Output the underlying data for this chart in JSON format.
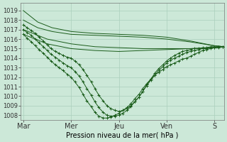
{
  "background_color": "#cce8d8",
  "grid_color": "#aacfbc",
  "line_color": "#1a5c1a",
  "xlabel": "Pression niveau de la mer( hPa )",
  "ylim": [
    1007.5,
    1019.8
  ],
  "xlim": [
    -0.05,
    4.2
  ],
  "yticks": [
    1008,
    1009,
    1010,
    1011,
    1012,
    1013,
    1014,
    1015,
    1016,
    1017,
    1018,
    1019
  ],
  "xtick_labels": [
    "Mar",
    "Mer",
    "Jeu",
    "Ven",
    "S"
  ],
  "xtick_positions": [
    0,
    1,
    2,
    3,
    4
  ],
  "smooth_lines": [
    {
      "x": [
        0,
        0.3,
        0.6,
        1.0,
        1.5,
        2.0,
        2.5,
        3.0,
        3.5,
        4.0,
        4.2
      ],
      "y": [
        1019.0,
        1017.8,
        1017.2,
        1016.8,
        1016.6,
        1016.5,
        1016.4,
        1016.2,
        1015.8,
        1015.3,
        1015.2
      ]
    },
    {
      "x": [
        0,
        0.3,
        0.6,
        1.0,
        1.5,
        2.0,
        2.5,
        3.0,
        3.5,
        4.0,
        4.2
      ],
      "y": [
        1018.0,
        1017.2,
        1016.8,
        1016.5,
        1016.4,
        1016.3,
        1016.2,
        1016.0,
        1015.7,
        1015.3,
        1015.2
      ]
    },
    {
      "x": [
        0,
        0.5,
        1.0,
        1.5,
        2.0,
        2.5,
        3.0,
        3.5,
        4.0,
        4.2
      ],
      "y": [
        1017.0,
        1016.0,
        1015.5,
        1015.2,
        1015.1,
        1015.0,
        1015.0,
        1015.0,
        1015.1,
        1015.2
      ]
    },
    {
      "x": [
        0,
        0.5,
        1.0,
        1.5,
        2.0,
        2.5,
        3.0,
        3.5,
        4.0,
        4.2
      ],
      "y": [
        1016.5,
        1015.5,
        1015.0,
        1014.8,
        1014.7,
        1014.8,
        1014.9,
        1015.0,
        1015.1,
        1015.2
      ]
    }
  ],
  "marked_lines": [
    {
      "x": [
        0,
        0.08,
        0.17,
        0.25,
        0.33,
        0.42,
        0.5,
        0.58,
        0.67,
        0.75,
        0.83,
        0.92,
        1.0,
        1.08,
        1.17,
        1.25,
        1.33,
        1.42,
        1.5,
        1.58,
        1.67,
        1.75,
        1.83,
        1.92,
        2.0,
        2.08,
        2.17,
        2.25,
        2.33,
        2.42,
        2.5,
        2.58,
        2.67,
        2.75,
        2.83,
        2.92,
        3.0,
        3.08,
        3.17,
        3.25,
        3.33,
        3.42,
        3.5,
        3.58,
        3.67,
        3.75,
        3.83,
        3.92,
        4.0,
        4.08,
        4.17
      ],
      "y": [
        1017.5,
        1017.2,
        1016.9,
        1016.6,
        1016.2,
        1015.8,
        1015.4,
        1015.0,
        1014.7,
        1014.5,
        1014.3,
        1014.1,
        1014.0,
        1013.7,
        1013.3,
        1012.8,
        1012.2,
        1011.5,
        1010.8,
        1010.1,
        1009.5,
        1009.0,
        1008.7,
        1008.5,
        1008.4,
        1008.5,
        1008.7,
        1009.0,
        1009.4,
        1009.9,
        1010.5,
        1011.2,
        1011.8,
        1012.4,
        1012.9,
        1013.3,
        1013.7,
        1014.0,
        1014.3,
        1014.5,
        1014.7,
        1014.8,
        1014.9,
        1015.0,
        1015.0,
        1015.1,
        1015.1,
        1015.2,
        1015.2,
        1015.2,
        1015.2
      ]
    },
    {
      "x": [
        0,
        0.08,
        0.17,
        0.25,
        0.33,
        0.42,
        0.5,
        0.58,
        0.67,
        0.75,
        0.83,
        0.92,
        1.0,
        1.08,
        1.17,
        1.25,
        1.33,
        1.42,
        1.5,
        1.58,
        1.67,
        1.75,
        1.83,
        1.92,
        2.0,
        2.08,
        2.17,
        2.25,
        2.33,
        2.42,
        2.5,
        2.58,
        2.67,
        2.75,
        2.83,
        2.92,
        3.0,
        3.08,
        3.17,
        3.25,
        3.33,
        3.42,
        3.5,
        3.58,
        3.67,
        3.75,
        3.83,
        3.92,
        4.0,
        4.08,
        4.17
      ],
      "y": [
        1017.0,
        1016.7,
        1016.4,
        1016.0,
        1015.6,
        1015.2,
        1014.8,
        1014.4,
        1014.1,
        1013.8,
        1013.5,
        1013.2,
        1013.0,
        1012.6,
        1012.1,
        1011.5,
        1010.8,
        1010.1,
        1009.4,
        1008.8,
        1008.3,
        1008.0,
        1007.9,
        1007.9,
        1008.0,
        1008.2,
        1008.5,
        1008.9,
        1009.4,
        1009.9,
        1010.5,
        1011.1,
        1011.7,
        1012.2,
        1012.7,
        1013.1,
        1013.5,
        1013.8,
        1014.0,
        1014.2,
        1014.4,
        1014.6,
        1014.7,
        1014.8,
        1014.9,
        1015.0,
        1015.0,
        1015.1,
        1015.1,
        1015.2,
        1015.2
      ]
    },
    {
      "x": [
        0,
        0.08,
        0.17,
        0.25,
        0.33,
        0.42,
        0.5,
        0.58,
        0.67,
        0.75,
        0.83,
        0.92,
        1.0,
        1.08,
        1.17,
        1.25,
        1.33,
        1.42,
        1.5,
        1.58,
        1.67,
        1.75,
        1.83,
        1.92,
        2.0,
        2.08,
        2.17,
        2.25,
        2.33,
        2.42,
        2.5,
        2.58,
        2.67,
        2.75,
        2.83,
        2.92,
        3.0,
        3.08,
        3.17,
        3.25,
        3.33,
        3.42,
        3.5,
        3.58,
        3.67,
        3.75,
        3.83,
        3.92,
        4.0,
        4.08,
        4.17
      ],
      "y": [
        1016.5,
        1016.1,
        1015.7,
        1015.3,
        1014.9,
        1014.5,
        1014.1,
        1013.7,
        1013.3,
        1013.0,
        1012.7,
        1012.3,
        1012.0,
        1011.5,
        1010.9,
        1010.2,
        1009.5,
        1008.9,
        1008.3,
        1007.9,
        1007.7,
        1007.7,
        1007.8,
        1008.0,
        1008.2,
        1008.5,
        1008.8,
        1009.2,
        1009.7,
        1010.2,
        1010.8,
        1011.3,
        1011.8,
        1012.2,
        1012.5,
        1012.8,
        1013.1,
        1013.3,
        1013.5,
        1013.7,
        1013.9,
        1014.0,
        1014.2,
        1014.4,
        1014.6,
        1014.8,
        1014.9,
        1015.0,
        1015.1,
        1015.1,
        1015.2
      ]
    }
  ]
}
